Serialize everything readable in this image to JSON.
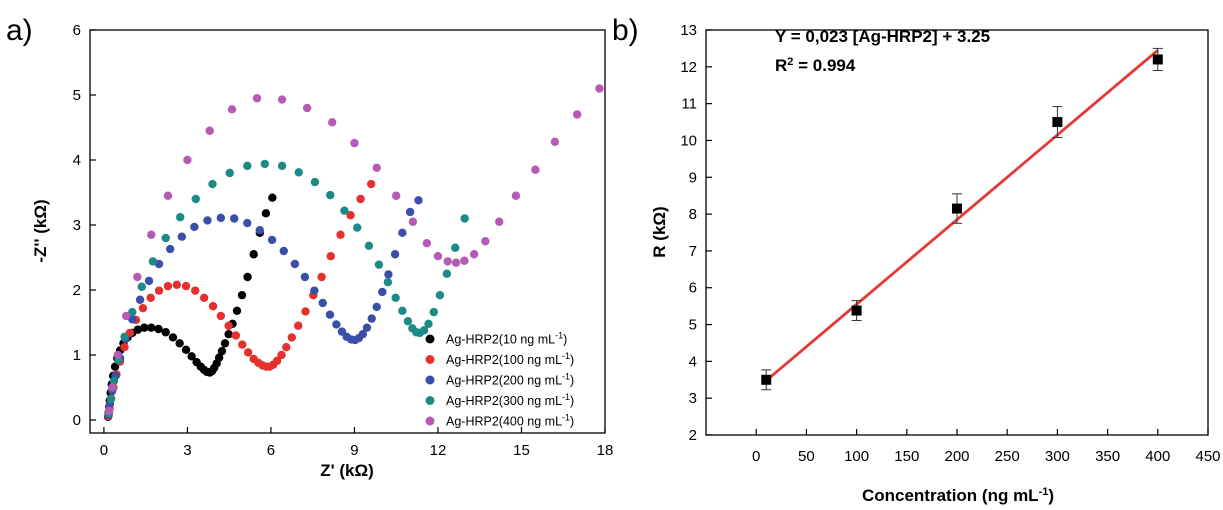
{
  "chart_data": [
    {
      "panel_label": "a)",
      "type": "scatter",
      "xlabel": "Z' (kΩ)",
      "ylabel": "-Z'' (kΩ)",
      "xlim": [
        -0.5,
        18
      ],
      "ylim": [
        -0.2,
        6
      ],
      "x_ticks": [
        0,
        3,
        6,
        9,
        12,
        15,
        18
      ],
      "y_ticks": [
        0,
        1,
        2,
        3,
        4,
        5,
        6
      ],
      "grid": false,
      "legend_placement": "bottom-right",
      "series": [
        {
          "name": "Ag-HRP2(10 ng mL",
          "name_sup": "-1",
          "name_end": ")",
          "color": "#000000",
          "x": [
            0.15,
            0.17,
            0.19,
            0.21,
            0.24,
            0.28,
            0.33,
            0.4,
            0.48,
            0.58,
            0.7,
            0.85,
            1.02,
            1.22,
            1.45,
            1.7,
            1.96,
            2.22,
            2.48,
            2.72,
            2.95,
            3.15,
            3.33,
            3.48,
            3.6,
            3.7,
            3.8,
            3.88,
            3.96,
            4.05,
            4.14,
            4.24,
            4.35,
            4.48,
            4.62,
            4.78,
            4.96,
            5.16,
            5.38,
            5.6,
            5.82,
            6.05
          ],
          "y": [
            0.05,
            0.12,
            0.2,
            0.3,
            0.42,
            0.55,
            0.68,
            0.82,
            0.95,
            1.07,
            1.18,
            1.27,
            1.34,
            1.39,
            1.42,
            1.42,
            1.4,
            1.35,
            1.27,
            1.18,
            1.08,
            0.98,
            0.89,
            0.82,
            0.77,
            0.74,
            0.73,
            0.75,
            0.8,
            0.87,
            0.96,
            1.06,
            1.18,
            1.32,
            1.48,
            1.68,
            1.92,
            2.2,
            2.55,
            2.88,
            3.18,
            3.42
          ]
        },
        {
          "name": "Ag-HRP2(100 ng mL",
          "name_sup": "-1",
          "name_end": ")",
          "color": "#e5302d",
          "x": [
            0.16,
            0.2,
            0.26,
            0.34,
            0.45,
            0.58,
            0.74,
            0.93,
            1.15,
            1.4,
            1.68,
            1.98,
            2.3,
            2.62,
            2.95,
            3.28,
            3.6,
            3.92,
            4.2,
            4.48,
            4.74,
            4.97,
            5.18,
            5.38,
            5.55,
            5.7,
            5.83,
            5.95,
            6.08,
            6.22,
            6.38,
            6.55,
            6.75,
            6.98,
            7.24,
            7.52,
            7.82,
            8.15,
            8.5,
            8.86,
            9.22,
            9.6
          ],
          "y": [
            0.06,
            0.18,
            0.33,
            0.5,
            0.7,
            0.9,
            1.12,
            1.34,
            1.54,
            1.72,
            1.88,
            1.99,
            2.06,
            2.08,
            2.06,
            1.99,
            1.88,
            1.75,
            1.6,
            1.45,
            1.3,
            1.16,
            1.04,
            0.94,
            0.88,
            0.84,
            0.82,
            0.82,
            0.85,
            0.91,
            1.0,
            1.12,
            1.27,
            1.45,
            1.67,
            1.92,
            2.2,
            2.52,
            2.85,
            3.15,
            3.4,
            3.63
          ]
        },
        {
          "name": "Ag-HRP2(200 ng mL",
          "name_sup": "-1",
          "name_end": ")",
          "color": "#3a4fa8",
          "x": [
            0.17,
            0.22,
            0.3,
            0.42,
            0.58,
            0.78,
            1.02,
            1.3,
            1.62,
            1.98,
            2.38,
            2.8,
            3.25,
            3.72,
            4.2,
            4.68,
            5.15,
            5.6,
            6.04,
            6.46,
            6.86,
            7.22,
            7.56,
            7.86,
            8.12,
            8.35,
            8.55,
            8.72,
            8.88,
            9.02,
            9.16,
            9.3,
            9.45,
            9.62,
            9.8,
            10.0,
            10.22,
            10.46,
            10.72,
            11.0,
            11.3
          ],
          "y": [
            0.08,
            0.25,
            0.45,
            0.68,
            0.95,
            1.25,
            1.55,
            1.85,
            2.14,
            2.4,
            2.63,
            2.82,
            2.97,
            3.07,
            3.11,
            3.1,
            3.03,
            2.92,
            2.77,
            2.6,
            2.4,
            2.2,
            1.99,
            1.8,
            1.62,
            1.47,
            1.36,
            1.28,
            1.24,
            1.23,
            1.26,
            1.32,
            1.42,
            1.56,
            1.74,
            1.97,
            2.24,
            2.55,
            2.88,
            3.2,
            3.38
          ]
        },
        {
          "name": "Ag-HRP2(300 ng mL",
          "name_sup": "-1",
          "name_end": ")",
          "color": "#1d8a8a",
          "x": [
            0.18,
            0.25,
            0.36,
            0.52,
            0.74,
            1.02,
            1.36,
            1.76,
            2.22,
            2.74,
            3.3,
            3.9,
            4.52,
            5.15,
            5.78,
            6.4,
            7.0,
            7.58,
            8.13,
            8.64,
            9.1,
            9.52,
            9.88,
            10.2,
            10.48,
            10.72,
            10.92,
            11.08,
            11.22,
            11.35,
            11.5,
            11.66,
            11.85,
            12.07,
            12.32,
            12.62,
            12.96
          ],
          "y": [
            0.1,
            0.32,
            0.6,
            0.92,
            1.28,
            1.66,
            2.05,
            2.44,
            2.8,
            3.12,
            3.4,
            3.63,
            3.8,
            3.91,
            3.94,
            3.91,
            3.81,
            3.66,
            3.46,
            3.22,
            2.96,
            2.68,
            2.39,
            2.12,
            1.88,
            1.68,
            1.52,
            1.41,
            1.35,
            1.34,
            1.38,
            1.48,
            1.66,
            1.92,
            2.25,
            2.65,
            3.1
          ]
        },
        {
          "name": "Ag-HRP2(400 ng mL",
          "name_sup": "-1",
          "name_end": ")",
          "color": "#b55bb5",
          "x": [
            0.19,
            0.3,
            0.5,
            0.8,
            1.2,
            1.7,
            2.3,
            3.0,
            3.8,
            4.6,
            5.5,
            6.4,
            7.3,
            8.2,
            9.0,
            9.8,
            10.5,
            11.1,
            11.6,
            12.0,
            12.35,
            12.65,
            12.95,
            13.3,
            13.7,
            14.2,
            14.8,
            15.5,
            16.2,
            17.0,
            17.8
          ],
          "y": [
            0.14,
            0.5,
            1.0,
            1.6,
            2.2,
            2.85,
            3.45,
            4.0,
            4.45,
            4.78,
            4.95,
            4.93,
            4.8,
            4.58,
            4.26,
            3.88,
            3.45,
            3.05,
            2.72,
            2.52,
            2.44,
            2.42,
            2.45,
            2.55,
            2.75,
            3.05,
            3.45,
            3.85,
            4.28,
            4.7,
            5.1
          ]
        }
      ]
    },
    {
      "panel_label": "b)",
      "type": "scatter",
      "xlabel": "Concentration (ng mL",
      "xlabel_sup": "-1",
      "xlabel_end": ")",
      "ylabel": "R (kΩ)",
      "xlim": [
        -50,
        450
      ],
      "ylim": [
        2,
        13
      ],
      "x_ticks": [
        0,
        50,
        100,
        150,
        200,
        250,
        300,
        350,
        400,
        450
      ],
      "y_ticks": [
        2,
        3,
        4,
        5,
        6,
        7,
        8,
        9,
        10,
        11,
        12,
        13
      ],
      "grid": false,
      "points": {
        "color": "#000000",
        "x": [
          10,
          100,
          200,
          300,
          400
        ],
        "y": [
          3.5,
          5.38,
          8.15,
          10.5,
          12.2
        ],
        "error": [
          0.27,
          0.27,
          0.4,
          0.42,
          0.3
        ]
      },
      "fit": {
        "color": "#e53935",
        "slope": 0.023,
        "intercept": 3.25,
        "x_range": [
          10,
          400
        ]
      },
      "annotation_eq": "Y = 0,023 [Ag-HRP2] + 3.25",
      "annotation_r2_prefix": "R",
      "annotation_r2_sup": "2",
      "annotation_r2_suffix": " = 0.994"
    }
  ]
}
